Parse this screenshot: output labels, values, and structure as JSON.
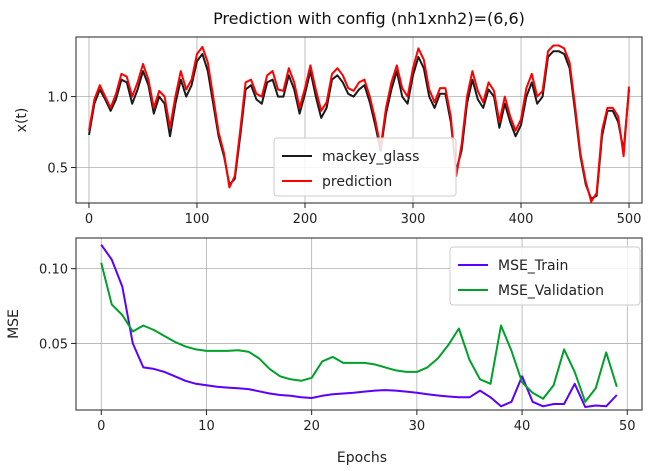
{
  "chart_data": [
    {
      "type": "line",
      "title": "Prediction with config (nh1xnh2)=(6,6)",
      "xlabel": "",
      "ylabel": "x(t)",
      "xlim": [
        -12,
        512
      ],
      "ylim": [
        0.25,
        1.42
      ],
      "xticks": [
        0,
        100,
        200,
        300,
        400,
        500
      ],
      "yticks": [
        0.5,
        1.0
      ],
      "ytick_labels": [
        "0.5",
        "1.0"
      ],
      "grid": true,
      "legend": "bottom-center",
      "series": [
        {
          "name": "mackey_glass",
          "color": "#1a1a1a",
          "x": [
            0,
            5,
            10,
            15,
            20,
            25,
            30,
            35,
            40,
            45,
            50,
            55,
            60,
            65,
            70,
            75,
            80,
            85,
            90,
            95,
            100,
            105,
            110,
            115,
            120,
            125,
            130,
            135,
            140,
            145,
            150,
            155,
            160,
            165,
            170,
            175,
            180,
            185,
            190,
            195,
            200,
            205,
            210,
            215,
            220,
            225,
            230,
            235,
            240,
            245,
            250,
            255,
            260,
            265,
            270,
            275,
            280,
            285,
            290,
            295,
            300,
            305,
            310,
            315,
            320,
            325,
            330,
            335,
            340,
            345,
            350,
            355,
            360,
            365,
            370,
            375,
            380,
            385,
            390,
            395,
            400,
            405,
            410,
            415,
            420,
            425,
            430,
            435,
            440,
            445,
            450,
            455,
            460,
            465,
            470,
            475,
            480,
            485,
            490,
            495,
            500
          ],
          "values": [
            0.73,
            0.95,
            1.05,
            0.98,
            0.9,
            0.98,
            1.12,
            1.1,
            0.95,
            1.05,
            1.18,
            1.08,
            0.88,
            1.0,
            0.95,
            0.72,
            0.95,
            1.12,
            1.0,
            1.08,
            1.25,
            1.3,
            1.18,
            0.95,
            0.72,
            0.58,
            0.38,
            0.42,
            0.72,
            1.05,
            1.08,
            0.98,
            0.95,
            1.1,
            1.12,
            1.0,
            1.0,
            1.15,
            1.05,
            0.88,
            1.02,
            1.18,
            1.0,
            0.85,
            0.92,
            1.12,
            1.15,
            1.1,
            1.02,
            1.0,
            1.05,
            1.08,
            0.96,
            0.8,
            0.62,
            0.88,
            1.05,
            1.18,
            1.0,
            0.95,
            1.15,
            1.28,
            1.2,
            1.0,
            0.92,
            1.02,
            1.02,
            0.82,
            0.48,
            0.62,
            0.95,
            1.12,
            0.98,
            0.92,
            1.05,
            1.0,
            0.78,
            0.95,
            0.82,
            0.72,
            0.8,
            1.0,
            1.1,
            0.95,
            1.0,
            1.28,
            1.32,
            1.32,
            1.3,
            1.2,
            0.9,
            0.58,
            0.38,
            0.28,
            0.3,
            0.72,
            0.9,
            0.9,
            0.82,
            0.62,
            1.05
          ]
        },
        {
          "name": "prediction",
          "color": "#ff0000",
          "x": [
            0,
            5,
            10,
            15,
            20,
            25,
            30,
            35,
            40,
            45,
            50,
            55,
            60,
            65,
            70,
            75,
            80,
            85,
            90,
            95,
            100,
            105,
            110,
            115,
            120,
            125,
            130,
            135,
            140,
            145,
            150,
            155,
            160,
            165,
            170,
            175,
            180,
            185,
            190,
            195,
            200,
            205,
            210,
            215,
            220,
            225,
            230,
            235,
            240,
            245,
            250,
            255,
            260,
            265,
            270,
            275,
            280,
            285,
            290,
            295,
            300,
            305,
            310,
            315,
            320,
            325,
            330,
            335,
            340,
            345,
            350,
            355,
            360,
            365,
            370,
            375,
            380,
            385,
            390,
            395,
            400,
            405,
            410,
            415,
            420,
            425,
            430,
            435,
            440,
            445,
            450,
            455,
            460,
            465,
            470,
            475,
            480,
            485,
            490,
            495,
            500
          ],
          "values": [
            0.76,
            0.98,
            1.08,
            1.0,
            0.92,
            1.02,
            1.16,
            1.14,
            1.0,
            1.1,
            1.23,
            1.12,
            0.92,
            1.04,
            1.0,
            0.78,
            1.0,
            1.18,
            1.05,
            1.12,
            1.3,
            1.35,
            1.24,
            1.0,
            0.75,
            0.6,
            0.36,
            0.44,
            0.76,
            1.1,
            1.12,
            1.02,
            1.0,
            1.15,
            1.18,
            1.05,
            1.04,
            1.2,
            1.1,
            0.92,
            1.06,
            1.22,
            1.05,
            0.9,
            0.96,
            1.16,
            1.2,
            1.15,
            1.06,
            1.04,
            1.1,
            1.12,
            1.0,
            0.84,
            0.64,
            0.92,
            1.1,
            1.22,
            1.06,
            1.0,
            1.2,
            1.34,
            1.26,
            1.05,
            0.96,
            1.06,
            1.06,
            0.86,
            0.44,
            0.66,
            1.0,
            1.18,
            1.04,
            0.96,
            1.1,
            1.04,
            0.82,
            1.0,
            0.86,
            0.76,
            0.84,
            1.06,
            1.16,
            1.0,
            1.04,
            1.32,
            1.36,
            1.36,
            1.34,
            1.24,
            0.94,
            0.6,
            0.4,
            0.26,
            0.32,
            0.76,
            0.92,
            0.92,
            0.86,
            0.58,
            1.07
          ]
        }
      ]
    },
    {
      "type": "line",
      "title": "",
      "xlabel": "Epochs",
      "ylabel": "MSE",
      "xlim": [
        -2.4,
        51.4
      ],
      "ylim": [
        0.0055,
        0.1205
      ],
      "xticks": [
        0,
        10,
        20,
        30,
        40,
        50
      ],
      "yticks": [
        0.05,
        0.1
      ],
      "ytick_labels": [
        "0.05",
        "0.10"
      ],
      "grid": true,
      "legend": "top-right",
      "series": [
        {
          "name": "MSE_Train",
          "color": "#5b00ff",
          "x": [
            0,
            1,
            2,
            3,
            4,
            5,
            6,
            7,
            8,
            9,
            10,
            11,
            12,
            13,
            14,
            15,
            16,
            17,
            18,
            19,
            20,
            21,
            22,
            23,
            24,
            25,
            26,
            27,
            28,
            29,
            30,
            31,
            32,
            33,
            34,
            35,
            36,
            37,
            38,
            39,
            40,
            41,
            42,
            43,
            44,
            45,
            46,
            47,
            48,
            49
          ],
          "values": [
            0.116,
            0.106,
            0.088,
            0.05,
            0.034,
            0.033,
            0.031,
            0.028,
            0.025,
            0.023,
            0.022,
            0.021,
            0.0205,
            0.02,
            0.0195,
            0.018,
            0.0165,
            0.0155,
            0.015,
            0.014,
            0.0135,
            0.015,
            0.016,
            0.0165,
            0.017,
            0.0178,
            0.0185,
            0.0188,
            0.0185,
            0.0178,
            0.017,
            0.016,
            0.0152,
            0.0145,
            0.014,
            0.014,
            0.0185,
            0.014,
            0.008,
            0.011,
            0.028,
            0.011,
            0.008,
            0.0095,
            0.0095,
            0.023,
            0.0075,
            0.0085,
            0.008,
            0.0155
          ]
        },
        {
          "name": "MSE_Validation",
          "color": "#00a02a",
          "x": [
            0,
            1,
            2,
            3,
            4,
            5,
            6,
            7,
            8,
            9,
            10,
            11,
            12,
            13,
            14,
            15,
            16,
            17,
            18,
            19,
            20,
            21,
            22,
            23,
            24,
            25,
            26,
            27,
            28,
            29,
            30,
            31,
            32,
            33,
            34,
            35,
            36,
            37,
            38,
            39,
            40,
            41,
            42,
            43,
            44,
            45,
            46,
            47,
            48,
            49
          ],
          "values": [
            0.104,
            0.076,
            0.069,
            0.058,
            0.062,
            0.059,
            0.055,
            0.051,
            0.048,
            0.046,
            0.045,
            0.045,
            0.045,
            0.0455,
            0.0445,
            0.04,
            0.033,
            0.028,
            0.026,
            0.025,
            0.027,
            0.038,
            0.041,
            0.037,
            0.037,
            0.037,
            0.036,
            0.034,
            0.032,
            0.031,
            0.031,
            0.034,
            0.04,
            0.049,
            0.06,
            0.039,
            0.026,
            0.023,
            0.062,
            0.045,
            0.024,
            0.017,
            0.013,
            0.022,
            0.046,
            0.031,
            0.011,
            0.02,
            0.044,
            0.021
          ]
        }
      ]
    }
  ]
}
